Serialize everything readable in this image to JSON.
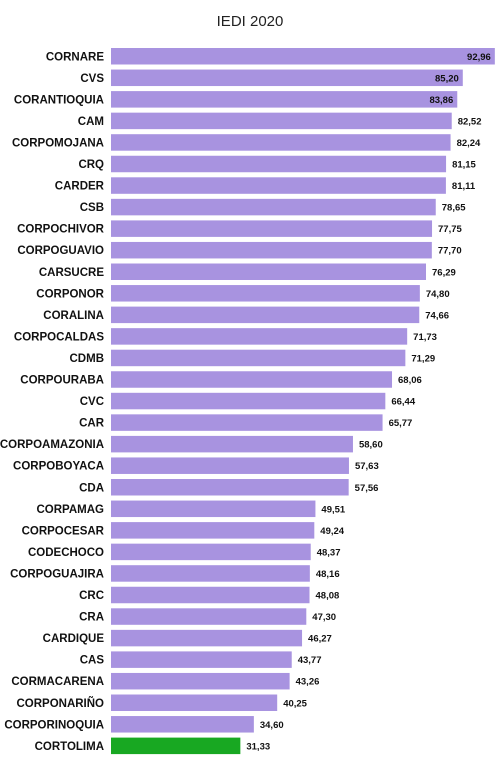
{
  "chart_data": {
    "type": "bar",
    "orientation": "horizontal",
    "title": "IEDI 2020",
    "xlabel": "",
    "ylabel": "",
    "xlim": [
      0,
      93
    ],
    "grid": false,
    "legend": "none",
    "colors": {
      "default": "#a893e0",
      "highlight": "#18a822"
    },
    "highlight_category": "CORTOLIMA",
    "categories": [
      "CORNARE",
      "CVS",
      "CORANTIOQUIA",
      "CAM",
      "CORPOMOJANA",
      "CRQ",
      "CARDER",
      "CSB",
      "CORPOCHIVOR",
      "CORPOGUAVIO",
      "CARSUCRE",
      "CORPONOR",
      "CORALINA",
      "CORPOCALDAS",
      "CDMB",
      "CORPOURABA",
      "CVC",
      "CAR",
      "CORPOAMAZONIA",
      "CORPOBOYACA",
      "CDA",
      "CORPAMAG",
      "CORPOCESAR",
      "CODECHOCO",
      "CORPOGUAJIRA",
      "CRC",
      "CRA",
      "CARDIQUE",
      "CAS",
      "CORMACARENA",
      "CORPONARIÑO",
      "CORPORINOQUIA",
      "CORTOLIMA"
    ],
    "values": [
      92.96,
      85.2,
      83.86,
      82.52,
      82.24,
      81.15,
      81.11,
      78.65,
      77.75,
      77.7,
      76.29,
      74.8,
      74.66,
      71.73,
      71.29,
      68.06,
      66.44,
      65.77,
      58.6,
      57.63,
      57.56,
      49.51,
      49.24,
      48.37,
      48.16,
      48.08,
      47.3,
      46.27,
      43.77,
      43.26,
      40.25,
      34.6,
      31.33
    ],
    "value_labels": [
      "92,96",
      "85,20",
      "83,86",
      "82,52",
      "82,24",
      "81,15",
      "81,11",
      "78,65",
      "77,75",
      "77,70",
      "76,29",
      "74,80",
      "74,66",
      "71,73",
      "71,29",
      "68,06",
      "66,44",
      "65,77",
      "58,60",
      "57,63",
      "57,56",
      "49,51",
      "49,24",
      "48,37",
      "48,16",
      "48,08",
      "47,30",
      "46,27",
      "43,77",
      "43,26",
      "40,25",
      "34,60",
      "31,33"
    ]
  }
}
